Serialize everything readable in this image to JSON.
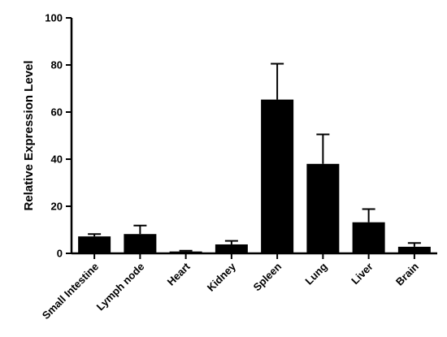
{
  "chart_data": {
    "type": "bar",
    "title": "",
    "xlabel": "",
    "ylabel": "Relative Expression Level",
    "categories": [
      "Small Intestine",
      "Lymph node",
      "Heart",
      "Kidney",
      "Spleen",
      "Lung",
      "Liver",
      "Brain"
    ],
    "values": [
      7.2,
      8.2,
      0.8,
      3.8,
      65.3,
      38.0,
      13.2,
      2.8
    ],
    "error_upper": [
      1.0,
      3.6,
      0.3,
      1.5,
      15.2,
      12.5,
      5.6,
      1.6
    ],
    "ylim": [
      0,
      100
    ],
    "yticks": [
      "0",
      "20",
      "40",
      "60",
      "80",
      "100"
    ],
    "grid": false,
    "bar_color": "#000000"
  }
}
